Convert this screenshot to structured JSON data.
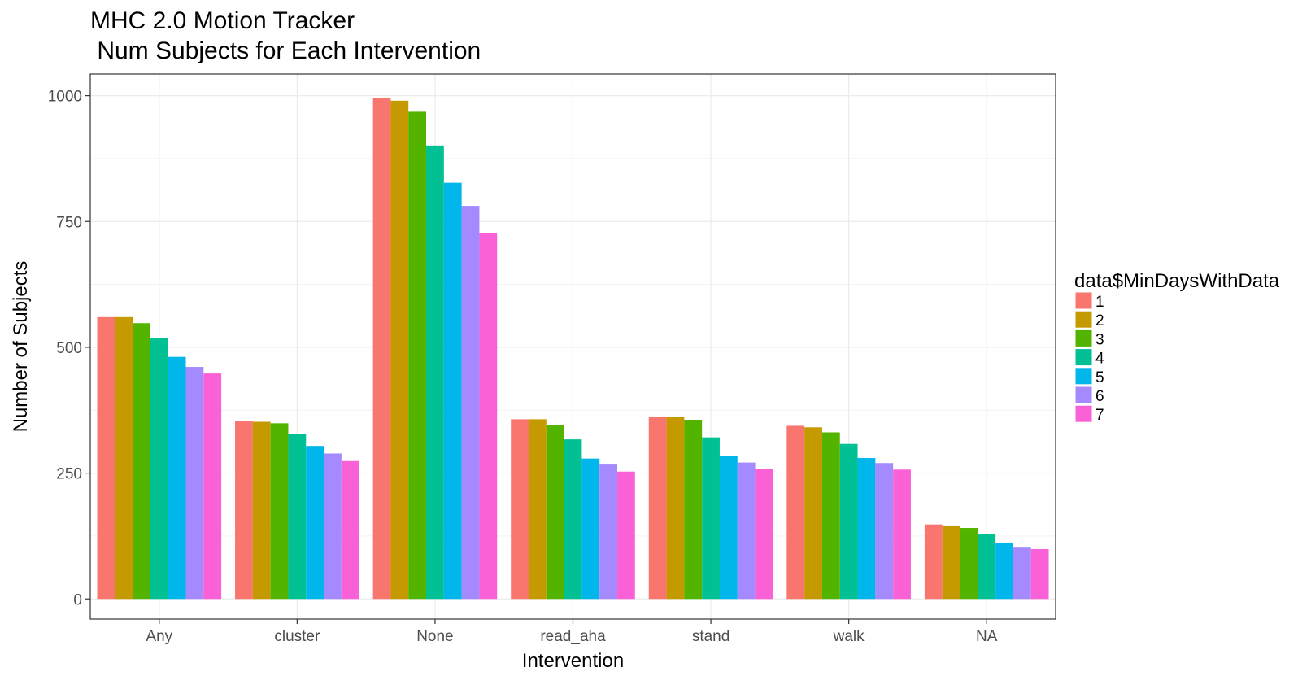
{
  "chart_data": {
    "type": "bar",
    "title_lines": [
      "MHC 2.0 Motion Tracker",
      " Num Subjects for Each Intervention"
    ],
    "xlabel": "Intervention",
    "ylabel": "Number of Subjects",
    "categories": [
      "Any",
      "cluster",
      "None",
      "read_aha",
      "stand",
      "walk",
      "NA"
    ],
    "ylim": [
      -40,
      1043
    ],
    "yticks": [
      0,
      250,
      500,
      750,
      1000
    ],
    "grid": true,
    "legend": {
      "title": "data$MinDaysWithData",
      "placement": "right"
    },
    "series": [
      {
        "name": "1",
        "color": "#F8766D",
        "values": [
          560,
          354,
          995,
          357,
          361,
          344,
          148
        ]
      },
      {
        "name": "2",
        "color": "#C49A00",
        "values": [
          560,
          352,
          990,
          357,
          361,
          341,
          146
        ]
      },
      {
        "name": "3",
        "color": "#53B400",
        "values": [
          548,
          349,
          968,
          346,
          356,
          331,
          141
        ]
      },
      {
        "name": "4",
        "color": "#00C094",
        "values": [
          519,
          328,
          901,
          317,
          321,
          308,
          129
        ]
      },
      {
        "name": "5",
        "color": "#00B6EB",
        "values": [
          481,
          304,
          827,
          279,
          284,
          280,
          112
        ]
      },
      {
        "name": "6",
        "color": "#A58AFF",
        "values": [
          461,
          289,
          781,
          267,
          271,
          270,
          102
        ]
      },
      {
        "name": "7",
        "color": "#FB61D7",
        "values": [
          448,
          274,
          727,
          253,
          258,
          257,
          99
        ]
      }
    ]
  }
}
